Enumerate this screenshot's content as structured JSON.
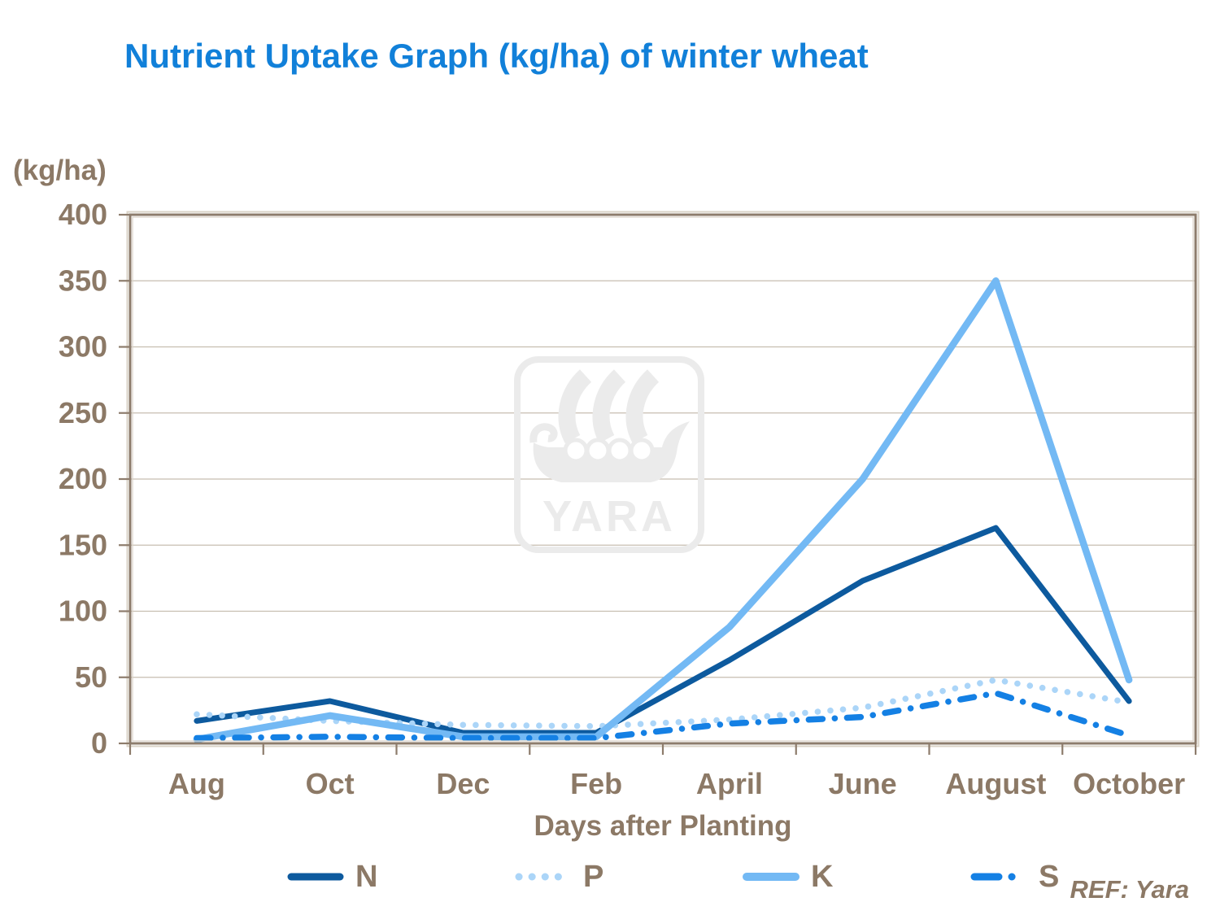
{
  "ref_note": "REF: Yara",
  "watermark_text": "YARA",
  "colors": {
    "title": "#1180D9",
    "axis_text": "#8C7966",
    "grid": "#C7BEB1",
    "frame": "#8D7C6C",
    "frame_highlight": "#DAD3C7",
    "watermark": "#EBEBEB",
    "background": "#FFFFFF"
  },
  "chart_data": {
    "type": "line",
    "title": "Nutrient Uptake Graph (kg/ha) of winter wheat",
    "xlabel": "Days after Planting",
    "ylabel": "(kg/ha)",
    "categories": [
      "Aug",
      "Oct",
      "Dec",
      "Feb",
      "April",
      "June",
      "August",
      "October"
    ],
    "series": [
      {
        "name": "N",
        "color": "#0D5A9E",
        "style": "solid",
        "values": [
          17,
          32,
          8,
          8,
          63,
          123,
          163,
          32
        ]
      },
      {
        "name": "P",
        "color": "#ABD5F8",
        "style": "dotted",
        "values": [
          22,
          17,
          14,
          13,
          18,
          27,
          48,
          31
        ]
      },
      {
        "name": "K",
        "color": "#73B9F4",
        "style": "solid",
        "values": [
          3,
          21,
          5,
          5,
          88,
          200,
          350,
          48
        ]
      },
      {
        "name": "S",
        "color": "#1480E4",
        "style": "dashdot",
        "values": [
          4,
          5,
          4,
          4,
          15,
          20,
          38,
          6
        ]
      }
    ],
    "ylim": [
      0,
      400
    ],
    "yticks": [
      0,
      50,
      100,
      150,
      200,
      250,
      300,
      350,
      400
    ],
    "grid": "horizontal",
    "legend_position": "bottom"
  }
}
